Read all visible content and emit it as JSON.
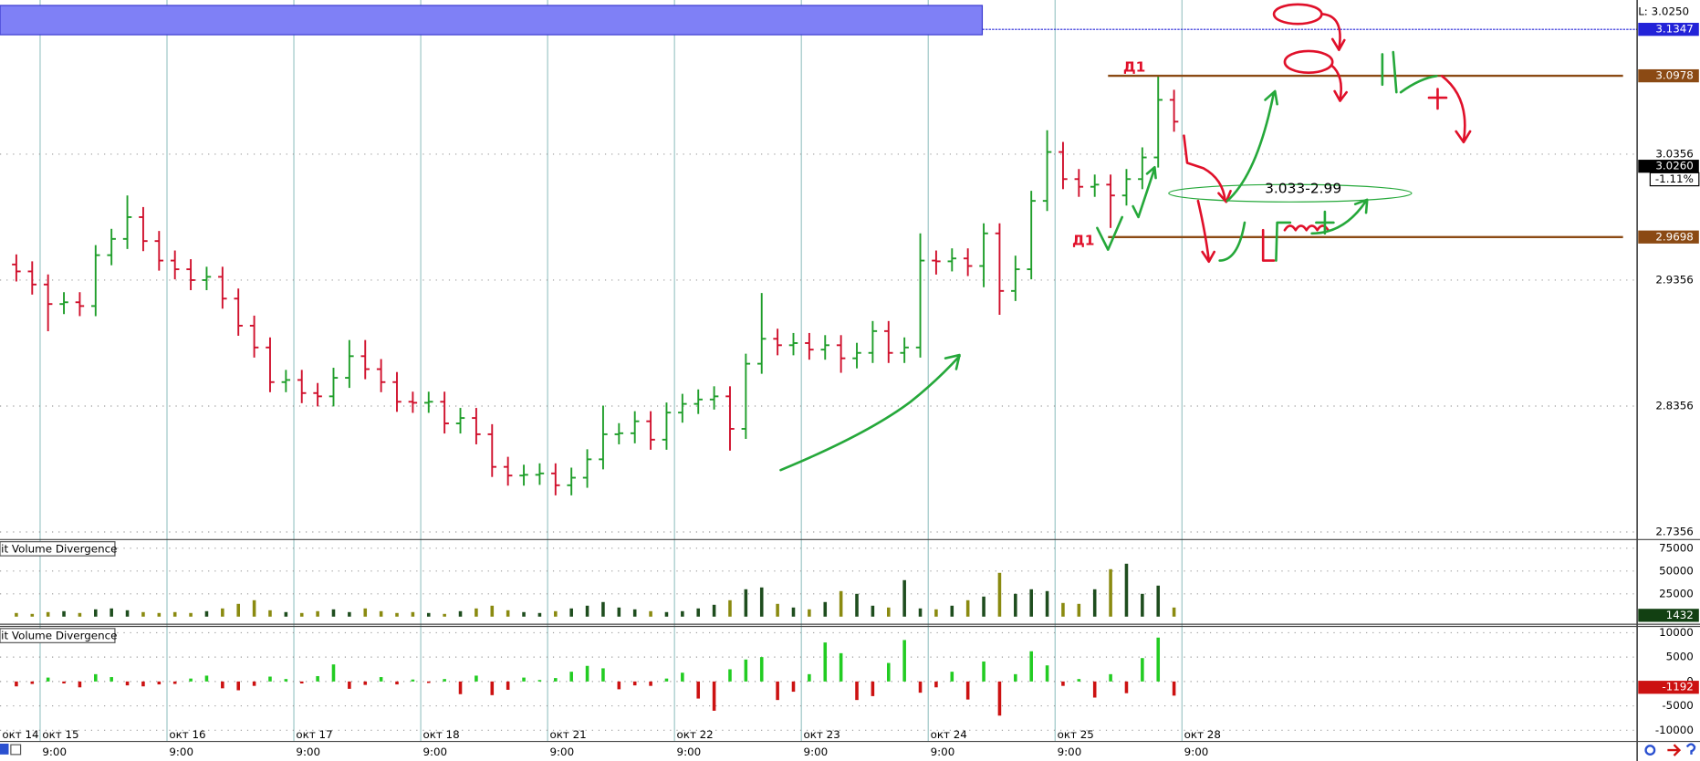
{
  "chart_data": [
    {
      "type": "ohlc",
      "open": [
        2.948,
        2.9425,
        2.9321,
        2.9166,
        2.918,
        2.915,
        2.9554,
        2.9683,
        2.9856,
        2.9666,
        2.9511,
        2.9442,
        2.9356,
        2.9382,
        2.9209,
        2.8994,
        2.8821,
        2.8546,
        2.8563,
        2.8459,
        2.8433,
        2.858,
        2.8752,
        2.8649,
        2.8546,
        2.839,
        2.8382,
        2.839,
        2.8218,
        2.8261,
        2.8132,
        2.7873,
        2.7804,
        2.781,
        2.7821,
        2.7727,
        2.7787,
        2.7933,
        2.8132,
        2.814,
        2.8235,
        2.8089,
        2.8304,
        2.8373,
        2.8408,
        2.8433,
        2.8175,
        2.8692,
        2.889,
        2.8839,
        2.8856,
        2.8804,
        2.8839,
        2.8735,
        2.8778,
        2.8951,
        2.8778,
        2.8821,
        2.9511,
        2.9505,
        2.9528,
        2.9468,
        2.9727,
        2.927,
        2.9442,
        2.9985,
        3.0373,
        3.0158,
        3.0097,
        3.0114,
        3.0028,
        3.0158,
        3.033,
        3.0787
      ],
      "high": [
        2.956,
        2.9505,
        2.9401,
        2.926,
        2.926,
        2.9634,
        2.9763,
        3.0028,
        2.9936,
        2.9746,
        2.9591,
        2.9522,
        2.9462,
        2.9462,
        2.9289,
        2.9074,
        2.8901,
        2.8643,
        2.8643,
        2.8539,
        2.866,
        2.888,
        2.888,
        2.8729,
        2.8626,
        2.847,
        2.847,
        2.847,
        2.8341,
        2.8341,
        2.8212,
        2.7953,
        2.789,
        2.7901,
        2.7901,
        2.7867,
        2.8013,
        2.836,
        2.822,
        2.8315,
        2.8315,
        2.8384,
        2.8453,
        2.8488,
        2.8513,
        2.8513,
        2.8772,
        2.9253,
        2.897,
        2.8936,
        2.8936,
        2.8919,
        2.8919,
        2.8858,
        2.9031,
        2.9031,
        2.8901,
        2.9727,
        2.9591,
        2.9608,
        2.9608,
        2.9807,
        2.9807,
        2.955,
        3.0065,
        3.0546,
        3.0453,
        3.0238,
        3.0194,
        3.0194,
        3.0238,
        3.041,
        3.0977,
        3.0867
      ],
      "low": [
        2.9345,
        2.9241,
        2.895,
        2.9086,
        2.907,
        2.907,
        2.9474,
        2.9603,
        2.9586,
        2.9431,
        2.9362,
        2.9276,
        2.9276,
        2.9129,
        2.8914,
        2.8741,
        2.8466,
        2.8466,
        2.8379,
        2.8353,
        2.8353,
        2.85,
        2.8569,
        2.8466,
        2.831,
        2.8302,
        2.8302,
        2.8138,
        2.8138,
        2.8052,
        2.7793,
        2.7724,
        2.7724,
        2.773,
        2.7647,
        2.7647,
        2.7707,
        2.7853,
        2.8052,
        2.806,
        2.8009,
        2.8009,
        2.8224,
        2.8293,
        2.8328,
        2.8002,
        2.8095,
        2.8612,
        2.8759,
        2.8759,
        2.8724,
        2.8724,
        2.862,
        2.8655,
        2.8698,
        2.8698,
        2.8698,
        2.8741,
        2.94,
        2.9425,
        2.9388,
        2.93,
        2.908,
        2.919,
        2.9362,
        2.9905,
        3.0078,
        3.0017,
        3.0017,
        2.977,
        2.9948,
        3.0078,
        3.025,
        3.0534
      ],
      "close": [
        2.9425,
        2.9321,
        2.9166,
        2.918,
        2.915,
        2.9554,
        2.9683,
        2.9856,
        2.9666,
        2.9511,
        2.9442,
        2.9356,
        2.9382,
        2.9209,
        2.8994,
        2.8821,
        2.8546,
        2.8563,
        2.8459,
        2.8433,
        2.858,
        2.8752,
        2.8649,
        2.8546,
        2.839,
        2.8382,
        2.839,
        2.8218,
        2.8261,
        2.8132,
        2.7873,
        2.7804,
        2.781,
        2.7821,
        2.7727,
        2.7787,
        2.7933,
        2.8132,
        2.814,
        2.8235,
        2.8089,
        2.8304,
        2.8373,
        2.8408,
        2.8433,
        2.8175,
        2.8692,
        2.889,
        2.8839,
        2.8856,
        2.8804,
        2.8839,
        2.8735,
        2.8778,
        2.8951,
        2.8778,
        2.8821,
        2.9511,
        2.9505,
        2.9528,
        2.9468,
        2.9727,
        2.927,
        2.9442,
        2.9985,
        3.0373,
        3.0158,
        3.0097,
        3.0114,
        3.0028,
        3.0158,
        3.033,
        3.0787,
        3.0614
      ],
      "up_color": "#1f9e2a",
      "down_color": "#d0102c",
      "ylim": [
        2.7296,
        3.158
      ],
      "yticks": [
        3.0356,
        2.9356,
        2.8356,
        2.7356
      ],
      "grid": true,
      "xlim": [
        -1.03,
        102.2
      ],
      "xticks": [
        {
          "value": -6.5,
          "label": "окт 14"
        },
        {
          "value": 1.5,
          "label": "окт 15"
        },
        {
          "value": 9.5,
          "label": "окт 16"
        },
        {
          "value": 17.5,
          "label": "окт 17"
        },
        {
          "value": 25.5,
          "label": "окт 18"
        },
        {
          "value": 33.5,
          "label": "окт 21"
        },
        {
          "value": 41.5,
          "label": "окт 22"
        },
        {
          "value": 49.5,
          "label": "окт 23"
        },
        {
          "value": 57.5,
          "label": "окт 24"
        },
        {
          "value": 65.5,
          "label": "окт 25"
        },
        {
          "value": 73.5,
          "label": "окт 28"
        }
      ],
      "xtick_times": [
        null,
        "9:00",
        "9:00",
        "9:00",
        "9:00",
        "9:00",
        "9:00",
        "9:00",
        "9:00",
        "9:00",
        "9:00"
      ],
      "levels": [
        {
          "value": 3.1347,
          "color": "#2323d8"
        },
        {
          "value": {
            "value": 3.0978,
            "label": "3.0978"
          },
          "color": "#8b4a14"
        },
        {
          "value": {
            "value": 2.9698,
            "label": "2.9698"
          },
          "color": "#8b4a14"
        }
      ],
      "last_price": {
        "value": 3.026,
        "label": "3.0260"
      },
      "change_label": "-1.11%",
      "low_label": "L: 3.0250",
      "annotations": [
        "Д1",
        "Д1",
        "3.033-2.99"
      ]
    },
    {
      "type": "bar",
      "title": "it Volume Divergence",
      "values": [
        4000,
        3000,
        5000,
        6000,
        4000,
        8000,
        9000,
        7000,
        5000,
        4000,
        5000,
        4000,
        6000,
        9000,
        14000,
        18000,
        7000,
        5000,
        4000,
        6000,
        8000,
        5000,
        9000,
        6000,
        4000,
        5000,
        4000,
        3000,
        6000,
        9000,
        12000,
        7000,
        5000,
        4000,
        6000,
        9000,
        12000,
        16000,
        10000,
        8000,
        6000,
        5000,
        6000,
        9000,
        13000,
        18000,
        30000,
        32000,
        14000,
        10000,
        8000,
        16000,
        28000,
        25000,
        12000,
        10000,
        40000,
        9000,
        8000,
        12000,
        18000,
        22000,
        48000,
        25000,
        30000,
        28000,
        15000,
        14000,
        30000,
        52000,
        58000,
        25000,
        34000,
        10000
      ],
      "up_color": "#1e4d1e",
      "down_color": "#8a8a10",
      "ylim": [
        -8300,
        84500
      ],
      "yticks": [
        75000,
        50000,
        25000
      ],
      "last_value": 1432,
      "last_color": "#124012"
    },
    {
      "type": "bar",
      "title": "it Volume Divergence",
      "values": [
        -1000,
        -500,
        800,
        -400,
        -1200,
        1500,
        900,
        -800,
        -1000,
        -600,
        -500,
        600,
        1200,
        -1400,
        -1800,
        -900,
        1000,
        500,
        -400,
        1100,
        3500,
        -1500,
        -700,
        900,
        -600,
        400,
        -300,
        500,
        -2600,
        1200,
        -2800,
        -1700,
        800,
        300,
        700,
        2000,
        3200,
        2700,
        -1600,
        -800,
        -900,
        600,
        1800,
        -3500,
        -6000,
        2500,
        4500,
        5000,
        -3800,
        -2100,
        1500,
        8000,
        5800,
        -3800,
        -3000,
        3800,
        8500,
        -2300,
        -1200,
        2000,
        -3700,
        4100,
        -7000,
        1500,
        6200,
        3300,
        -900,
        500,
        -3300,
        1500,
        -2400,
        4800,
        9000,
        -2900
      ],
      "up_color": "#22cc22",
      "down_color": "#cc1111",
      "ylim": [
        -12300,
        11300
      ],
      "yticks": [
        10000,
        5000,
        0,
        -5000,
        -10000
      ],
      "last_value": -1192,
      "last_color": "#cc1111"
    }
  ]
}
